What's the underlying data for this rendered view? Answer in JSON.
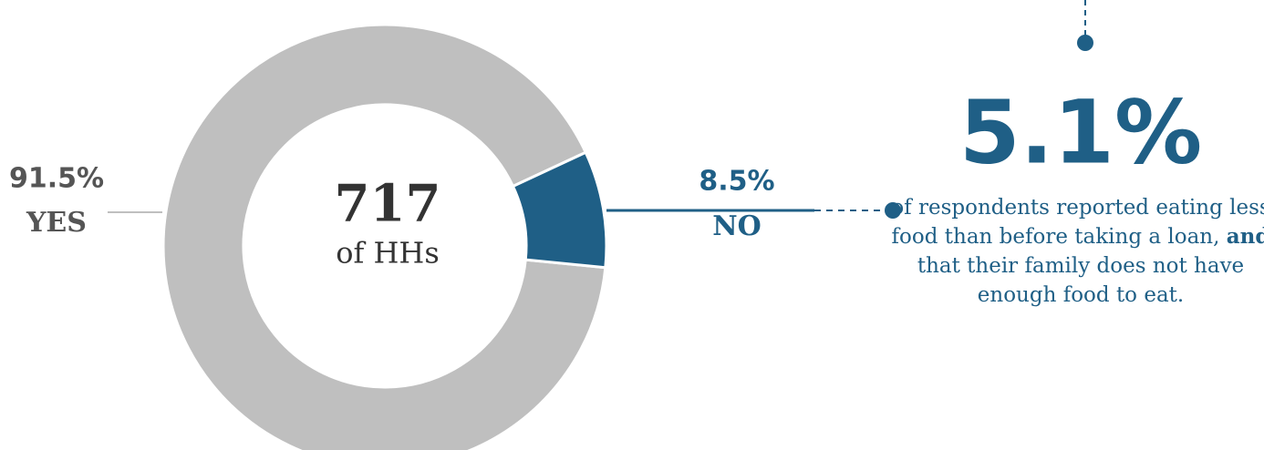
{
  "chart_data": {
    "type": "donut",
    "categories": [
      "YES",
      "NO"
    ],
    "values": [
      91.5,
      8.5
    ],
    "value_labels": [
      "91.5%",
      "8.5%"
    ],
    "colors": [
      "#bfbfbf",
      "#1f5f86"
    ],
    "center_value": 717,
    "center_label": "of HHs",
    "annotation": {
      "headline": "5.1%",
      "text_parts": [
        "of respondents reported eating less food than before taking a loan, ",
        "and",
        " that their family does not have enough food to eat."
      ]
    }
  }
}
